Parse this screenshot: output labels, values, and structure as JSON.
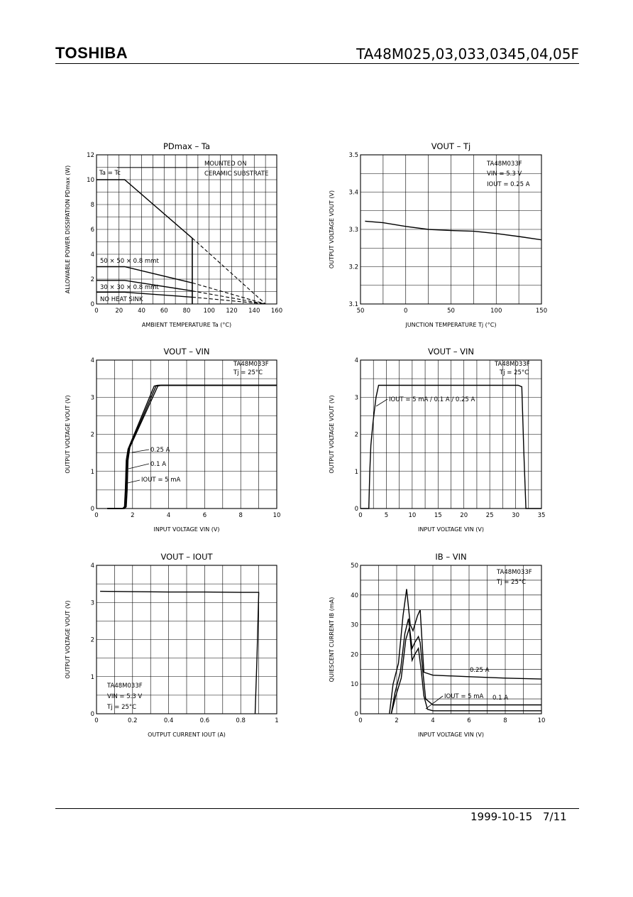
{
  "header": {
    "brand": "TOSHIBA",
    "part_number": "TA48M025,03,033,0345,04,05F"
  },
  "footer": {
    "date": "1999-10-15",
    "page": "7/11"
  },
  "chart_data": [
    {
      "id": "pd",
      "type": "line",
      "title": "PDmax  –  Ta",
      "xlabel": "AMBIENT TEMPERATURE   Ta   (°C)",
      "ylabel": "ALLOWABLE POWER DISSIPATION  PDmax  (W)",
      "xlim": [
        0,
        160
      ],
      "ylim": [
        0,
        12
      ],
      "xticks": [
        0,
        20,
        40,
        60,
        80,
        100,
        120,
        140,
        160
      ],
      "yticks": [
        0,
        2,
        4,
        6,
        8,
        10,
        12
      ],
      "ytick_labels": [
        "0",
        "2",
        "4",
        "6",
        "8",
        "10",
        "12"
      ],
      "grid": true,
      "series": [
        {
          "name": "MOUNTED ON CERAMIC SUBSTRATE",
          "x": [
            0,
            25,
            85
          ],
          "y": [
            10,
            10,
            5.3
          ],
          "extension": [
            [
              85,
              5.3
            ],
            [
              150,
              0
            ]
          ],
          "vline_at": 85
        },
        {
          "name": "50 × 50 × 0.8 mmt",
          "x": [
            0,
            25,
            85
          ],
          "y": [
            3,
            3,
            1.7
          ],
          "extension": [
            [
              85,
              1.7
            ],
            [
              150,
              0
            ]
          ]
        },
        {
          "name": "30 × 30 × 0.8 mmt",
          "x": [
            0,
            25,
            85
          ],
          "y": [
            1.9,
            1.9,
            1.05
          ],
          "extension": [
            [
              85,
              1.05
            ],
            [
              150,
              0
            ]
          ]
        },
        {
          "name": "NO HEAT SINK",
          "x": [
            0,
            25,
            85
          ],
          "y": [
            0.95,
            0.95,
            0.55
          ],
          "extension": [
            [
              85,
              0.55
            ],
            [
              150,
              0
            ]
          ]
        }
      ],
      "annotations": [
        "Ta = Tc",
        "MOUNTED ON",
        "CERAMIC SUBSTRATE",
        "50 × 50 × 0.8 mmt",
        "30 × 30 × 0.8 mmt",
        "NO HEAT SINK"
      ]
    },
    {
      "id": "vt",
      "type": "line",
      "title": "VOUT  –  Tj",
      "xlabel": "JUNCTION TEMPERATURE   Tj   (°C)",
      "ylabel": "OUTPUT VOLTAGE   VOUT   (V)",
      "xlim": [
        -50,
        150
      ],
      "ylim": [
        3.1,
        3.5
      ],
      "xticks": [
        -50,
        0,
        50,
        100,
        150
      ],
      "xtick_labels": [
        "50",
        "0",
        "50",
        "100",
        "150"
      ],
      "yticks": [
        3.1,
        3.2,
        3.3,
        3.4,
        3.5
      ],
      "ytick_labels": [
        "3.1",
        "3.2",
        "3.3",
        "3.4",
        "3.5"
      ],
      "grid": true,
      "series": [
        {
          "x": [
            -45,
            -25,
            0,
            25,
            50,
            75,
            100,
            125,
            150
          ],
          "y": [
            3.322,
            3.318,
            3.308,
            3.3,
            3.297,
            3.295,
            3.289,
            3.281,
            3.272
          ]
        }
      ],
      "annotations": [
        "TA48M033F",
        "VIN = 5.3 V",
        "IOUT = 0.25 A"
      ]
    },
    {
      "id": "vv1",
      "type": "line",
      "title": "VOUT  –  VIN",
      "xlabel": "INPUT VOLTAGE   VIN   (V)",
      "ylabel": "OUTPUT VOLTAGE   VOUT   (V)",
      "xlim": [
        0,
        10
      ],
      "ylim": [
        0,
        4
      ],
      "xticks": [
        0,
        2,
        4,
        6,
        8,
        10
      ],
      "yticks": [
        0,
        1,
        2,
        3,
        4
      ],
      "grid": true,
      "series": [
        {
          "name": "IOUT = 5 mA",
          "x": [
            0.6,
            1.45,
            1.55,
            1.6,
            1.65,
            1.75,
            3.2,
            3.4,
            10
          ],
          "y": [
            0,
            0,
            0.05,
            0.5,
            1.3,
            1.6,
            3.3,
            3.32,
            3.32
          ]
        },
        {
          "name": "0.1 A",
          "x": [
            0.6,
            1.5,
            1.6,
            1.65,
            1.7,
            1.8,
            3.3,
            3.5,
            10
          ],
          "y": [
            0,
            0,
            0.05,
            0.5,
            1.3,
            1.62,
            3.3,
            3.32,
            3.32
          ]
        },
        {
          "name": "0.25 A",
          "x": [
            0.6,
            1.55,
            1.65,
            1.7,
            1.75,
            1.85,
            3.4,
            3.6,
            10
          ],
          "y": [
            0,
            0,
            0.05,
            0.5,
            1.3,
            1.65,
            3.3,
            3.32,
            3.32
          ]
        }
      ],
      "annotations": [
        "TA48M033F",
        "Tj = 25°C",
        "0.25 A",
        "0.1 A",
        "IOUT = 5 mA"
      ]
    },
    {
      "id": "vv2",
      "type": "line",
      "title": "VOUT  –  VIN",
      "xlabel": "INPUT VOLTAGE   VIN   (V)",
      "ylabel": "OUTPUT VOLTAGE   VOUT   (V)",
      "xlim": [
        0,
        35
      ],
      "ylim": [
        0,
        4
      ],
      "xticks": [
        0,
        5,
        10,
        15,
        20,
        25,
        30,
        35
      ],
      "yticks": [
        0,
        1,
        2,
        3,
        4
      ],
      "grid": true,
      "series": [
        {
          "x": [
            0,
            1.6,
            1.8,
            2.0,
            2.4,
            3.0,
            3.5,
            30.5,
            31.2,
            31.6,
            32,
            35
          ],
          "y": [
            0,
            0,
            1.0,
            1.7,
            2.3,
            3.0,
            3.32,
            3.32,
            3.28,
            1.5,
            0,
            0
          ]
        }
      ],
      "annotations": [
        "TA48M033F",
        "Tj = 25°C",
        "IOUT = 5 mA / 0.1 A / 0.25 A"
      ]
    },
    {
      "id": "vi",
      "type": "line",
      "title": "VOUT  –  IOUT",
      "xlabel": "OUTPUT CURRENT   IOUT   (A)",
      "ylabel": "OUTPUT VOLTAGE   VOUT   (V)",
      "xlim": [
        0,
        1
      ],
      "ylim": [
        0,
        4
      ],
      "xticks": [
        0,
        0.2,
        0.4,
        0.6,
        0.8,
        1
      ],
      "yticks": [
        0,
        1,
        2,
        3,
        4
      ],
      "grid": true,
      "series": [
        {
          "x": [
            0.02,
            0.2,
            0.4,
            0.6,
            0.8,
            0.9,
            0.89,
            0.88
          ],
          "y": [
            3.3,
            3.29,
            3.28,
            3.28,
            3.27,
            3.27,
            1.5,
            0
          ]
        }
      ],
      "annotations": [
        "TA48M033F",
        "VIN = 5.3 V",
        "Tj = 25°C"
      ]
    },
    {
      "id": "ib",
      "type": "line",
      "title": "IB  –  VIN",
      "xlabel": "INPUT VOLTAGE   VIN   (V)",
      "ylabel": "QUIESCENT CURRENT   IB   (mA)",
      "xlim": [
        0,
        10
      ],
      "ylim": [
        0,
        50
      ],
      "xticks": [
        0,
        2,
        4,
        6,
        8,
        10
      ],
      "yticks": [
        0,
        10,
        20,
        30,
        40,
        50
      ],
      "grid": true,
      "series": [
        {
          "name": "0.25 A",
          "x": [
            1.6,
            1.8,
            2.1,
            2.35,
            2.55,
            2.75,
            2.9,
            3.15,
            3.3,
            3.5,
            4,
            6,
            8,
            10
          ],
          "y": [
            0,
            10,
            17,
            33,
            42,
            30,
            28,
            33,
            35,
            14,
            13,
            12.5,
            12,
            11.7
          ]
        },
        {
          "name": "0.1 A",
          "x": [
            1.7,
            1.9,
            2.2,
            2.45,
            2.65,
            2.85,
            3.0,
            3.2,
            3.3,
            3.45,
            3.6,
            4,
            6,
            8,
            10
          ],
          "y": [
            0,
            7,
            14,
            27,
            32,
            22,
            24,
            26,
            24,
            14,
            5,
            3,
            3,
            3,
            3
          ]
        },
        {
          "name": "IOUT = 5 mA",
          "x": [
            1.7,
            1.95,
            2.25,
            2.5,
            2.7,
            2.85,
            3.0,
            3.2,
            3.35,
            3.5,
            3.7,
            4,
            6,
            8,
            10
          ],
          "y": [
            0,
            6,
            12,
            25,
            29,
            18,
            20,
            22,
            15,
            6,
            1.5,
            1,
            1,
            1,
            1
          ]
        }
      ],
      "annotations": [
        "TA48M033F",
        "Tj = 25°C",
        "0.25 A",
        "IOUT = 5 mA",
        "0.1 A"
      ]
    }
  ]
}
